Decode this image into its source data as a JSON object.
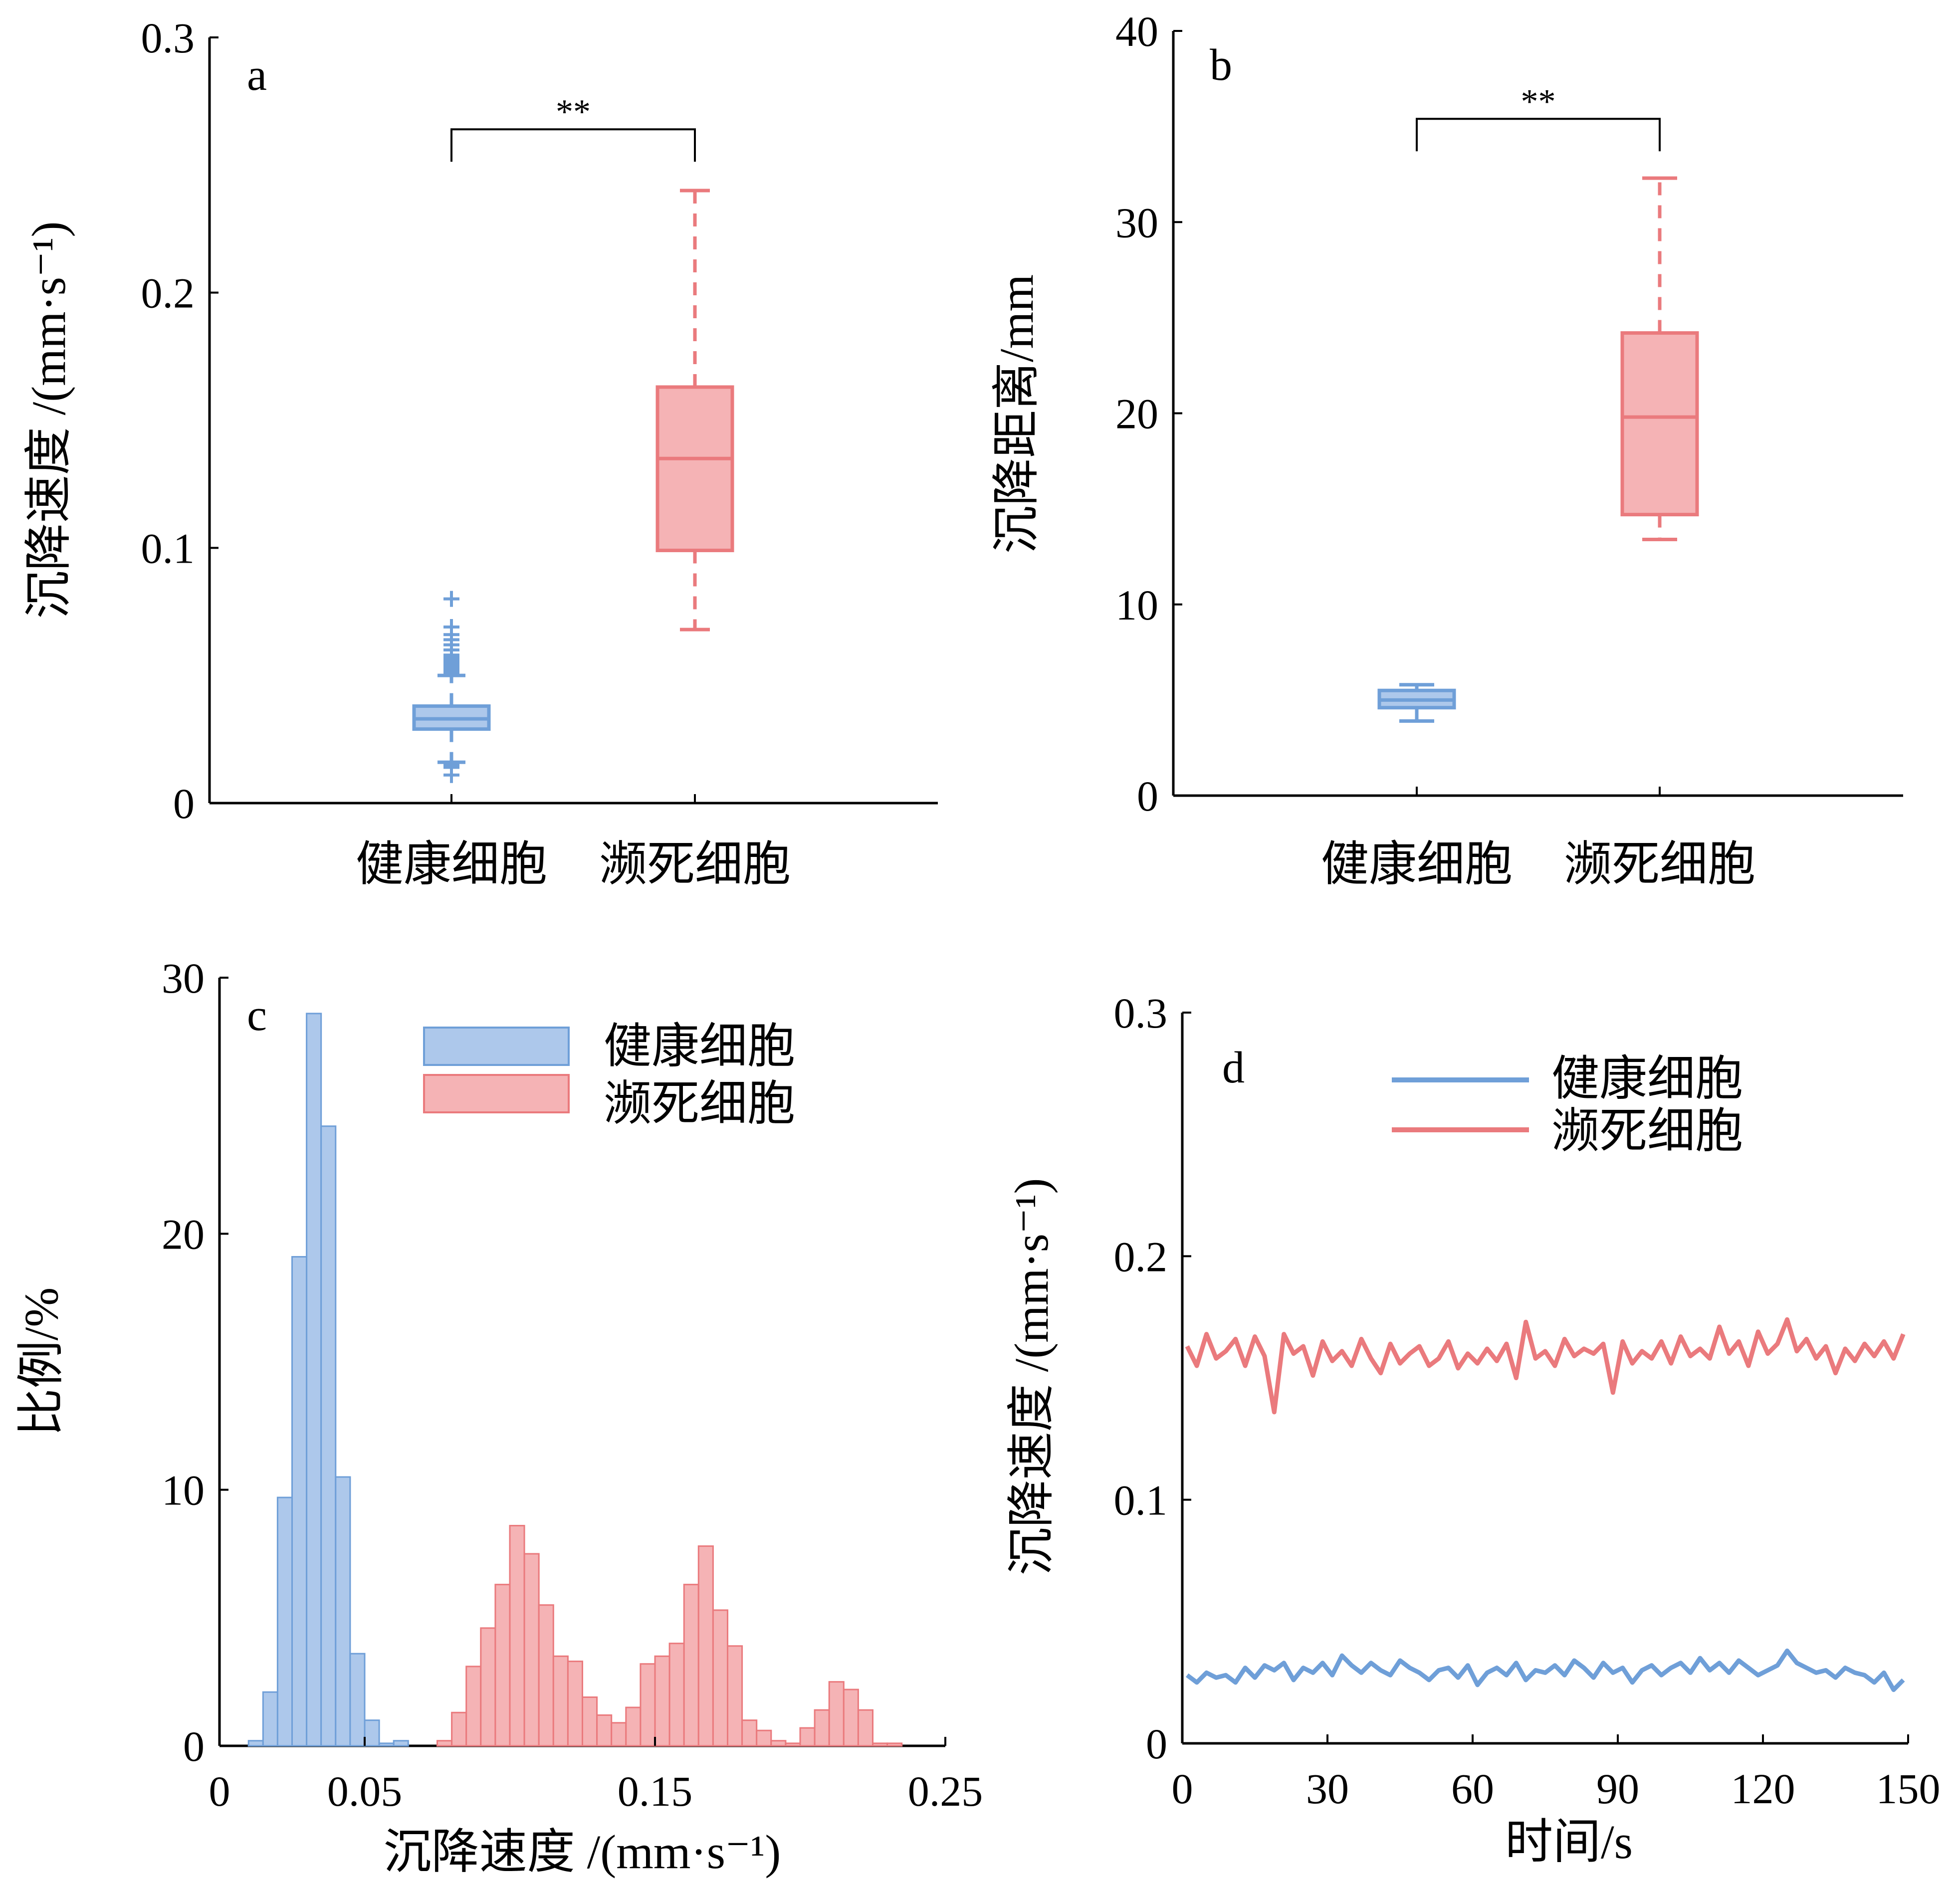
{
  "colors": {
    "healthy": "#6f9fd8",
    "healthy_fill": "#adc8eb",
    "necrotic": "#ea7a7d",
    "necrotic_fill": "#f5b3b5",
    "axis": "#000000"
  },
  "chart_data": [
    {
      "panel": "a",
      "type": "box",
      "ylabel": "沉降速度 /(mm·s⁻¹)",
      "ylim": [
        0,
        0.3
      ],
      "yticks": [
        "0",
        "0.1",
        "0.2",
        "0.3"
      ],
      "categories": [
        "健康细胞",
        "濒死细胞"
      ],
      "boxes": [
        {
          "name": "健康细胞",
          "whisker_low": 0.016,
          "q1": 0.029,
          "median": 0.033,
          "q3": 0.038,
          "whisker_high": 0.05,
          "outliers": [
            0.011,
            0.014,
            0.015,
            0.016,
            0.051,
            0.052,
            0.053,
            0.054,
            0.055,
            0.056,
            0.057,
            0.058,
            0.06,
            0.062,
            0.064,
            0.066,
            0.069,
            0.08
          ]
        },
        {
          "name": "濒死细胞",
          "whisker_low": 0.068,
          "q1": 0.099,
          "median": 0.135,
          "q3": 0.163,
          "whisker_high": 0.24,
          "outliers": []
        }
      ],
      "significance": {
        "label": "**",
        "y": 0.264
      }
    },
    {
      "panel": "b",
      "type": "box",
      "ylabel": "沉降距离/mm",
      "ylim": [
        0,
        40
      ],
      "yticks": [
        "0",
        "10",
        "20",
        "30",
        "40"
      ],
      "categories": [
        "健康细胞",
        "濒死细胞"
      ],
      "boxes": [
        {
          "name": "健康细胞",
          "whisker_low": 3.9,
          "q1": 4.6,
          "median": 5.0,
          "q3": 5.5,
          "whisker_high": 5.8,
          "outliers": []
        },
        {
          "name": "濒死细胞",
          "whisker_low": 13.4,
          "q1": 14.7,
          "median": 19.8,
          "q3": 24.2,
          "whisker_high": 32.3,
          "outliers": []
        }
      ],
      "significance": {
        "label": "**",
        "y": 35.4
      }
    },
    {
      "panel": "c",
      "type": "histogram",
      "xlabel": "沉降速度 /(mm·s⁻¹)",
      "ylabel": "比例/%",
      "xlim": [
        0,
        0.25
      ],
      "ylim": [
        0,
        30
      ],
      "xticks": [
        "0",
        "0.05",
        "0.15",
        "0.25"
      ],
      "yticks": [
        "0",
        "10",
        "20",
        "30"
      ],
      "bin_width": 0.005,
      "series": [
        {
          "name": "健康细胞",
          "bin_starts": [
            0.01,
            0.015,
            0.02,
            0.025,
            0.03,
            0.035,
            0.04,
            0.045,
            0.05,
            0.055,
            0.06
          ],
          "values": [
            0.2,
            2.1,
            9.7,
            19.1,
            28.6,
            24.2,
            10.5,
            3.6,
            1.0,
            0.1,
            0.2
          ]
        },
        {
          "name": "濒死细胞",
          "bin_starts": [
            0.075,
            0.08,
            0.085,
            0.09,
            0.095,
            0.1,
            0.105,
            0.11,
            0.115,
            0.12,
            0.125,
            0.13,
            0.135,
            0.14,
            0.145,
            0.15,
            0.155,
            0.16,
            0.165,
            0.17,
            0.175,
            0.18,
            0.185,
            0.19,
            0.195,
            0.2,
            0.205,
            0.21,
            0.215,
            0.22,
            0.225,
            0.23
          ],
          "values": [
            0.2,
            1.3,
            3.1,
            4.6,
            6.3,
            8.6,
            7.5,
            5.5,
            3.5,
            3.3,
            1.9,
            1.2,
            0.9,
            1.5,
            3.2,
            3.5,
            4.0,
            6.3,
            7.8,
            5.3,
            3.9,
            1.0,
            0.6,
            0.2,
            0.1,
            0.7,
            1.4,
            2.5,
            2.2,
            1.4,
            0.1,
            0.1
          ]
        }
      ]
    },
    {
      "panel": "d",
      "type": "line",
      "xlabel": "时间/s",
      "ylabel": "沉降速度 /(mm·s⁻¹)",
      "xlim": [
        0,
        150
      ],
      "ylim": [
        0,
        0.3
      ],
      "xticks": [
        "0",
        "30",
        "60",
        "90",
        "120",
        "150"
      ],
      "yticks": [
        "0",
        "0.1",
        "0.2",
        "0.3"
      ],
      "series": [
        {
          "name": "健康细胞",
          "x": [
            1,
            3,
            5,
            7,
            9,
            11,
            13,
            15,
            17,
            19,
            21,
            23,
            25,
            27,
            29,
            31,
            33,
            35,
            37,
            39,
            41,
            43,
            45,
            47,
            49,
            51,
            53,
            55,
            57,
            59,
            61,
            63,
            65,
            67,
            69,
            71,
            73,
            75,
            77,
            79,
            81,
            83,
            85,
            87,
            89,
            91,
            93,
            95,
            97,
            99,
            101,
            103,
            105,
            107,
            109,
            111,
            113,
            115,
            117,
            119,
            121,
            123,
            125,
            127,
            129,
            131,
            133,
            135,
            137,
            139,
            141,
            143,
            145,
            147,
            149
          ],
          "y": [
            0.028,
            0.025,
            0.029,
            0.027,
            0.028,
            0.025,
            0.031,
            0.027,
            0.032,
            0.03,
            0.033,
            0.026,
            0.031,
            0.029,
            0.033,
            0.028,
            0.036,
            0.032,
            0.029,
            0.033,
            0.03,
            0.028,
            0.034,
            0.031,
            0.029,
            0.026,
            0.03,
            0.031,
            0.027,
            0.032,
            0.024,
            0.029,
            0.031,
            0.028,
            0.033,
            0.026,
            0.03,
            0.029,
            0.032,
            0.028,
            0.034,
            0.031,
            0.027,
            0.033,
            0.029,
            0.031,
            0.025,
            0.03,
            0.032,
            0.028,
            0.031,
            0.033,
            0.029,
            0.035,
            0.03,
            0.033,
            0.029,
            0.034,
            0.031,
            0.028,
            0.03,
            0.032,
            0.038,
            0.033,
            0.031,
            0.029,
            0.03,
            0.027,
            0.031,
            0.029,
            0.028,
            0.025,
            0.029,
            0.022,
            0.026
          ]
        },
        {
          "name": "濒死细胞",
          "x": [
            1,
            3,
            5,
            7,
            9,
            11,
            13,
            15,
            17,
            19,
            21,
            23,
            25,
            27,
            29,
            31,
            33,
            35,
            37,
            39,
            41,
            43,
            45,
            47,
            49,
            51,
            53,
            55,
            57,
            59,
            61,
            63,
            65,
            67,
            69,
            71,
            73,
            75,
            77,
            79,
            81,
            83,
            85,
            87,
            89,
            91,
            93,
            95,
            97,
            99,
            101,
            103,
            105,
            107,
            109,
            111,
            113,
            115,
            117,
            119,
            121,
            123,
            125,
            127,
            129,
            131,
            133,
            135,
            137,
            139,
            141,
            143,
            145,
            147,
            149
          ],
          "y": [
            0.163,
            0.155,
            0.168,
            0.158,
            0.161,
            0.166,
            0.155,
            0.167,
            0.159,
            0.136,
            0.168,
            0.16,
            0.163,
            0.151,
            0.165,
            0.157,
            0.161,
            0.155,
            0.166,
            0.158,
            0.152,
            0.164,
            0.156,
            0.16,
            0.163,
            0.155,
            0.158,
            0.165,
            0.154,
            0.16,
            0.156,
            0.162,
            0.157,
            0.164,
            0.15,
            0.173,
            0.158,
            0.161,
            0.155,
            0.166,
            0.159,
            0.162,
            0.16,
            0.164,
            0.144,
            0.165,
            0.156,
            0.161,
            0.158,
            0.165,
            0.156,
            0.167,
            0.159,
            0.162,
            0.158,
            0.171,
            0.16,
            0.165,
            0.155,
            0.169,
            0.16,
            0.164,
            0.174,
            0.161,
            0.166,
            0.158,
            0.163,
            0.152,
            0.162,
            0.157,
            0.164,
            0.159,
            0.165,
            0.158,
            0.168
          ]
        }
      ]
    }
  ]
}
